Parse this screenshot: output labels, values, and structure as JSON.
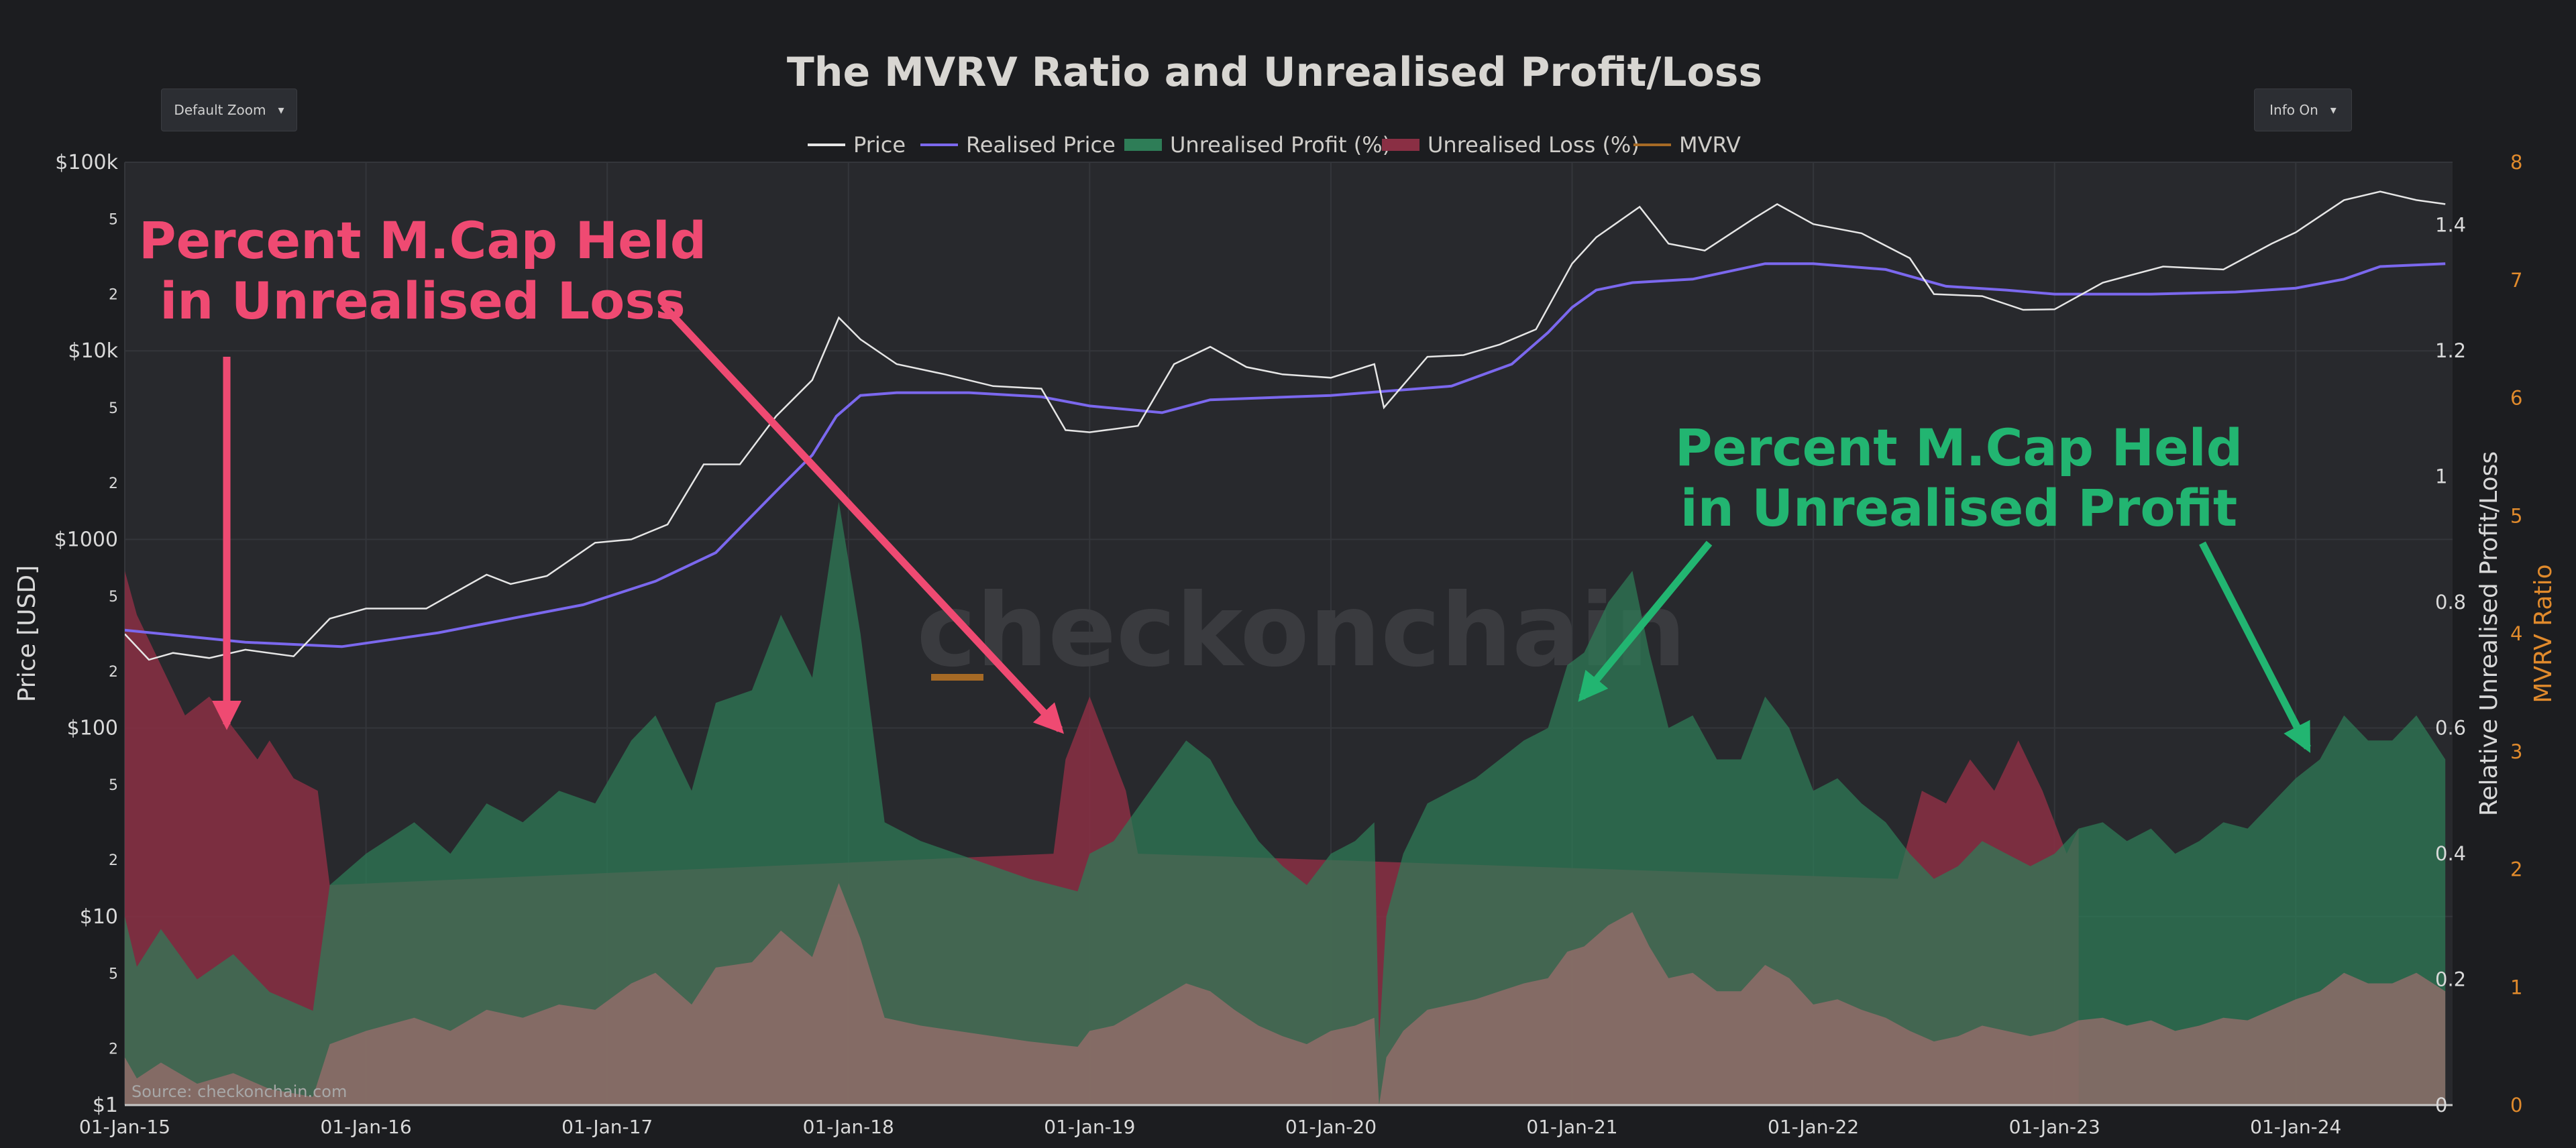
{
  "title": "The MVRV Ratio and Unrealised Profit/Loss",
  "controls": {
    "zoom_label": "Default Zoom",
    "info_label": "Info On",
    "caret": "▾"
  },
  "legend": [
    {
      "name": "Price",
      "color": "#e6e6e6",
      "kind": "line",
      "muted": false
    },
    {
      "name": "Realised Price",
      "color": "#7b68ee",
      "kind": "line",
      "muted": false
    },
    {
      "name": "Unrealised Profit (%)",
      "color": "#2e7d57",
      "kind": "area",
      "muted": false
    },
    {
      "name": "Unrealised Loss (%)",
      "color": "#8a2f44",
      "kind": "area",
      "muted": false
    },
    {
      "name": "MVRV",
      "color": "#a66a25",
      "kind": "line",
      "muted": true
    }
  ],
  "annotations": {
    "loss_line1": "Percent M.Cap Held",
    "loss_line2": "in Unrealised Loss",
    "profit_line1": "Percent M.Cap Held",
    "profit_line2": "in Unrealised Profit"
  },
  "watermark": "checkonchain",
  "source": "Source: checkonchain.com",
  "colors": {
    "profit_fill": "#2e7d57",
    "loss_fill": "#8a2f44",
    "base_fill": "#9a6e6c",
    "price_line": "#e6e6e6",
    "realised_line": "#7b68ee",
    "mvrv_axis": "#e08a2c",
    "loss_annotation": "#ef4a72",
    "profit_annotation": "#22b571"
  },
  "chart_data": {
    "type": "line",
    "title": "The MVRV Ratio and Unrealised Profit/Loss",
    "xlabel": "",
    "x_ticks": [
      "01-Jan-15",
      "01-Jan-16",
      "01-Jan-17",
      "01-Jan-18",
      "01-Jan-19",
      "01-Jan-20",
      "01-Jan-21",
      "01-Jan-22",
      "01-Jan-23",
      "01-Jan-24"
    ],
    "x_range": [
      2015.0,
      2024.65
    ],
    "y_left": {
      "label": "Price [USD]",
      "scale": "log",
      "range": [
        1,
        100000
      ],
      "major_ticks": [
        {
          "value": 1,
          "label": "$1"
        },
        {
          "value": 10,
          "label": "$10"
        },
        {
          "value": 100,
          "label": "$100"
        },
        {
          "value": 1000,
          "label": "$1000"
        },
        {
          "value": 10000,
          "label": "$10k"
        },
        {
          "value": 100000,
          "label": "$100k"
        }
      ],
      "minor_ticks": [
        {
          "value": 2,
          "label": "2"
        },
        {
          "value": 5,
          "label": "5"
        },
        {
          "value": 20,
          "label": "2"
        },
        {
          "value": 50,
          "label": "5"
        },
        {
          "value": 200,
          "label": "2"
        },
        {
          "value": 500,
          "label": "5"
        },
        {
          "value": 2000,
          "label": "2"
        },
        {
          "value": 5000,
          "label": "5"
        },
        {
          "value": 20000,
          "label": "2"
        },
        {
          "value": 50000,
          "label": "5"
        }
      ]
    },
    "y_mid": {
      "label": "Relative Unrealised Profit/Loss",
      "range": [
        0,
        1.5
      ],
      "ticks": [
        {
          "value": 0,
          "label": "0"
        },
        {
          "value": 0.2,
          "label": "0.2"
        },
        {
          "value": 0.4,
          "label": "0.4"
        },
        {
          "value": 0.6,
          "label": "0.6"
        },
        {
          "value": 0.8,
          "label": "0.8"
        },
        {
          "value": 1,
          "label": "1"
        },
        {
          "value": 1.2,
          "label": "1.2"
        },
        {
          "value": 1.4,
          "label": "1.4"
        }
      ]
    },
    "y_right": {
      "label": "MVRV Ratio",
      "range": [
        0,
        8
      ],
      "ticks": [
        {
          "value": 0,
          "label": "0"
        },
        {
          "value": 1,
          "label": "1"
        },
        {
          "value": 2,
          "label": "2"
        },
        {
          "value": 3,
          "label": "3"
        },
        {
          "value": 4,
          "label": "4"
        },
        {
          "value": 5,
          "label": "5"
        },
        {
          "value": 6,
          "label": "6"
        },
        {
          "value": 7,
          "label": "7"
        },
        {
          "value": 8,
          "label": "8"
        }
      ]
    },
    "series": [
      {
        "name": "Price",
        "axis": "y_left",
        "x": [
          2015.0,
          2015.1,
          2015.2,
          2015.35,
          2015.5,
          2015.7,
          2015.85,
          2016.0,
          2016.25,
          2016.5,
          2016.6,
          2016.75,
          2016.95,
          2017.1,
          2017.25,
          2017.4,
          2017.55,
          2017.7,
          2017.85,
          2017.96,
          2018.05,
          2018.2,
          2018.4,
          2018.6,
          2018.8,
          2018.9,
          2019.0,
          2019.2,
          2019.35,
          2019.5,
          2019.65,
          2019.8,
          2020.0,
          2020.18,
          2020.22,
          2020.4,
          2020.55,
          2020.7,
          2020.85,
          2021.0,
          2021.1,
          2021.28,
          2021.4,
          2021.55,
          2021.75,
          2021.85,
          2022.0,
          2022.2,
          2022.4,
          2022.5,
          2022.7,
          2022.87,
          2023.0,
          2023.2,
          2023.45,
          2023.7,
          2023.9,
          2024.0,
          2024.2,
          2024.35,
          2024.5,
          2024.62
        ],
        "values": [
          315,
          230,
          250,
          235,
          260,
          240,
          380,
          430,
          430,
          650,
          580,
          640,
          960,
          1000,
          1200,
          2500,
          2500,
          4500,
          7000,
          15000,
          11500,
          8500,
          7500,
          6500,
          6300,
          3800,
          3700,
          4000,
          8500,
          10500,
          8200,
          7500,
          7200,
          8500,
          5000,
          9300,
          9500,
          10800,
          13000,
          29000,
          40000,
          58000,
          37000,
          34000,
          50000,
          60000,
          47000,
          42000,
          31000,
          20000,
          19500,
          16500,
          16600,
          23000,
          28000,
          27000,
          37000,
          42500,
          63000,
          70000,
          63000,
          60000
        ]
      },
      {
        "name": "Realised Price",
        "axis": "y_left",
        "x": [
          2015.0,
          2015.5,
          2015.9,
          2016.3,
          2016.6,
          2016.9,
          2017.2,
          2017.45,
          2017.7,
          2017.85,
          2017.95,
          2018.05,
          2018.2,
          2018.5,
          2018.8,
          2019.0,
          2019.3,
          2019.5,
          2020.0,
          2020.5,
          2020.75,
          2020.9,
          2021.0,
          2021.1,
          2021.25,
          2021.5,
          2021.8,
          2022.0,
          2022.3,
          2022.55,
          2022.8,
          2023.0,
          2023.4,
          2023.75,
          2024.0,
          2024.2,
          2024.35,
          2024.62
        ],
        "values": [
          330,
          285,
          270,
          320,
          380,
          450,
          600,
          850,
          1800,
          2800,
          4500,
          5800,
          6000,
          6000,
          5700,
          5100,
          4700,
          5500,
          5800,
          6500,
          8500,
          12500,
          17000,
          21000,
          23000,
          24000,
          29000,
          29000,
          27000,
          22000,
          21000,
          20000,
          20000,
          20500,
          21500,
          24000,
          28000,
          29000
        ]
      },
      {
        "name": "Unrealised Profit (%)",
        "axis": "y_mid",
        "x": [
          2015.0,
          2015.05,
          2015.15,
          2015.3,
          2015.45,
          2015.6,
          2015.78,
          2015.85,
          2016.0,
          2016.2,
          2016.35,
          2016.5,
          2016.65,
          2016.8,
          2016.95,
          2017.1,
          2017.2,
          2017.35,
          2017.45,
          2017.6,
          2017.72,
          2017.85,
          2017.96,
          2018.05,
          2018.15,
          2018.3,
          2018.45,
          2018.6,
          2018.75,
          2018.85,
          2018.95,
          2019.0,
          2019.1,
          2019.25,
          2019.4,
          2019.5,
          2019.6,
          2019.7,
          2019.8,
          2019.9,
          2020.0,
          2020.1,
          2020.18,
          2020.2,
          2020.23,
          2020.3,
          2020.4,
          2020.5,
          2020.6,
          2020.7,
          2020.8,
          2020.9,
          2020.98,
          2021.05,
          2021.15,
          2021.25,
          2021.32,
          2021.4,
          2021.5,
          2021.6,
          2021.7,
          2021.8,
          2021.9,
          2022.0,
          2022.1,
          2022.2,
          2022.3,
          2022.4,
          2022.5,
          2022.6,
          2022.7,
          2022.8,
          2022.9,
          2023.0,
          2023.1,
          2023.2,
          2023.3,
          2023.4,
          2023.5,
          2023.6,
          2023.7,
          2023.8,
          2023.9,
          2024.0,
          2024.1,
          2024.2,
          2024.3,
          2024.4,
          2024.5,
          2024.62
        ],
        "values": [
          0.3,
          0.22,
          0.28,
          0.2,
          0.24,
          0.18,
          0.15,
          0.35,
          0.4,
          0.45,
          0.4,
          0.48,
          0.45,
          0.5,
          0.48,
          0.58,
          0.62,
          0.5,
          0.64,
          0.66,
          0.78,
          0.68,
          0.96,
          0.75,
          0.45,
          0.42,
          0.4,
          0.38,
          0.36,
          0.35,
          0.34,
          0.4,
          0.42,
          0.5,
          0.58,
          0.55,
          0.48,
          0.42,
          0.38,
          0.35,
          0.4,
          0.42,
          0.45,
          0.1,
          0.3,
          0.4,
          0.48,
          0.5,
          0.52,
          0.55,
          0.58,
          0.6,
          0.7,
          0.72,
          0.8,
          0.85,
          0.72,
          0.6,
          0.62,
          0.55,
          0.55,
          0.65,
          0.6,
          0.5,
          0.52,
          0.48,
          0.45,
          0.4,
          0.36,
          0.38,
          0.42,
          0.4,
          0.38,
          0.4,
          0.44,
          0.45,
          0.42,
          0.44,
          0.4,
          0.42,
          0.45,
          0.44,
          0.48,
          0.52,
          0.55,
          0.62,
          0.58,
          0.58,
          0.62,
          0.55
        ]
      },
      {
        "name": "Unrealised Loss (%)",
        "axis": "y_mid",
        "x": [
          2015.0,
          2015.05,
          2015.15,
          2015.25,
          2015.35,
          2015.45,
          2015.55,
          2015.6,
          2015.7,
          2015.8,
          2015.85,
          2018.85,
          2018.9,
          2018.95,
          2019.0,
          2019.1,
          2019.15,
          2019.2,
          2022.35,
          2022.45,
          2022.55,
          2022.65,
          2022.75,
          2022.85,
          2022.95,
          2023.05,
          2023.1
        ],
        "values": [
          0.85,
          0.78,
          0.7,
          0.62,
          0.65,
          0.6,
          0.55,
          0.58,
          0.52,
          0.5,
          0.35,
          0.4,
          0.55,
          0.6,
          0.65,
          0.55,
          0.5,
          0.4,
          0.36,
          0.5,
          0.48,
          0.55,
          0.5,
          0.58,
          0.5,
          0.4,
          0.44
        ]
      },
      {
        "name": "MVRV",
        "axis": "y_right",
        "visible": false,
        "x": [],
        "values": []
      }
    ]
  }
}
